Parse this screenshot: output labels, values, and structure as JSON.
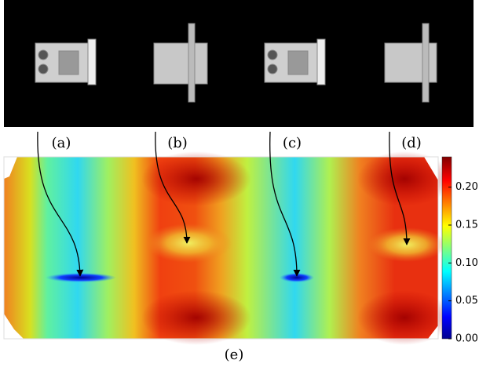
{
  "panels": [
    {
      "label": "(a)"
    },
    {
      "label": "(b)"
    },
    {
      "label": "(c)"
    },
    {
      "label": "(d)"
    }
  ],
  "heatmap": {
    "label": "(e)",
    "colorbar": {
      "lim": [
        0,
        0.24
      ],
      "ticks": [
        {
          "value": 0,
          "label": "0.00"
        },
        0.05,
        {
          "value": 0.1,
          "label": "0.10"
        },
        0.15,
        {
          "value": 0.2,
          "label": "0.20"
        }
      ]
    }
  }
}
